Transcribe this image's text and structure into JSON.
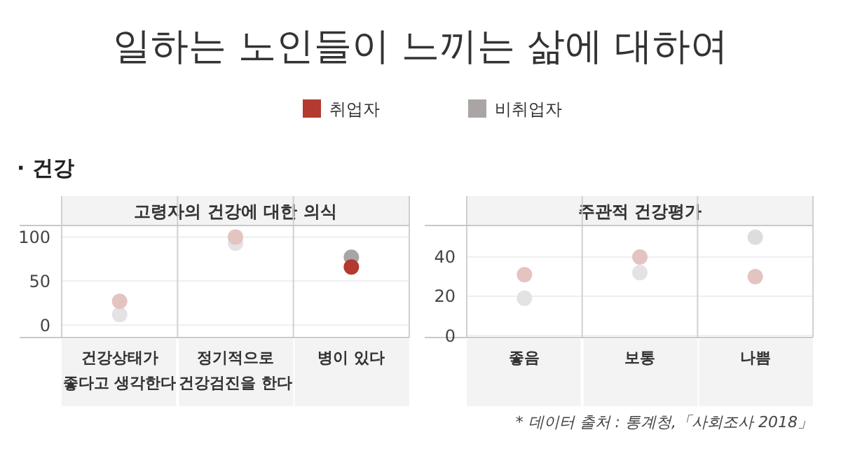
{
  "chart_data": [
    {
      "type": "other",
      "title": "일하는 노인들이 느끼는 삶에 대하여",
      "annotations": [
        "· 건강"
      ]
    },
    {
      "type": "scatter",
      "title": "고령자의 건강에 대한 의식",
      "categories": [
        "건강상태가 좋다고 생각한다",
        "정기적으로 건강검진을 한다",
        "병이 있다"
      ],
      "ylim": [
        -14,
        113
      ],
      "yticks": [
        0,
        50,
        100
      ],
      "grid": true,
      "legend": "top",
      "marker": "circle",
      "series": [
        {
          "name": "취업자",
          "color": "#b33a2f",
          "colors": [
            "#e3c4c1",
            "#e3c4c1",
            "#b33a2f"
          ],
          "values": [
            27,
            100,
            66
          ]
        },
        {
          "name": "비취업자",
          "color": "#aaa5a4",
          "colors": [
            "#e4e2e3",
            "#e4e2e3",
            "#aaa5a4"
          ],
          "values": [
            12,
            93,
            77
          ]
        }
      ]
    },
    {
      "type": "scatter",
      "title": "주관적 건강평가",
      "categories": [
        "좋음",
        "보통",
        "나쁨"
      ],
      "ylim": [
        -1,
        56
      ],
      "yticks": [
        0,
        20,
        40
      ],
      "grid": true,
      "marker": "circle",
      "annotations": [
        "* 데이터 출처 : 통계청,「사회조사 2018」"
      ],
      "series": [
        {
          "colors": [
            "#e3c4c1",
            "#e3c4c1",
            "#e3c4c1"
          ],
          "values": [
            31,
            40,
            30
          ]
        },
        {
          "colors": [
            "#e4e2e3",
            "#e4e2e3",
            "#dedcdd"
          ],
          "values": [
            19,
            32,
            50
          ]
        }
      ]
    }
  ]
}
